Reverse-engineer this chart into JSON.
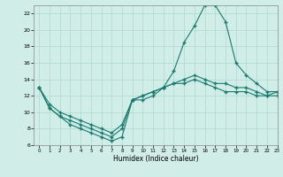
{
  "title": "",
  "xlabel": "Humidex (Indice chaleur)",
  "x_values": [
    0,
    1,
    2,
    3,
    4,
    5,
    6,
    7,
    8,
    9,
    10,
    11,
    12,
    13,
    14,
    15,
    16,
    17,
    18,
    19,
    20,
    21,
    22,
    23
  ],
  "line1": [
    13,
    10.5,
    9.5,
    8.5,
    8.0,
    7.5,
    7.0,
    6.5,
    7.0,
    11.5,
    11.5,
    12.0,
    13.0,
    15.0,
    18.5,
    20.5,
    23.0,
    23.0,
    21.0,
    16.0,
    14.5,
    13.5,
    12.5,
    12.5
  ],
  "line2": [
    13,
    10.5,
    9.5,
    9.0,
    8.5,
    8.0,
    7.5,
    7.0,
    8.0,
    11.5,
    12.0,
    12.5,
    13.0,
    13.5,
    14.0,
    14.5,
    14.0,
    13.5,
    13.5,
    13.0,
    13.0,
    12.5,
    12.0,
    12.5
  ],
  "line3": [
    13,
    11.0,
    10.0,
    9.5,
    9.0,
    8.5,
    8.0,
    7.5,
    8.5,
    11.5,
    12.0,
    12.5,
    13.0,
    13.5,
    13.5,
    14.0,
    13.5,
    13.0,
    12.5,
    12.5,
    12.5,
    12.0,
    12.0,
    12.0
  ],
  "ylim": [
    6,
    23
  ],
  "xlim": [
    -0.5,
    23
  ],
  "yticks": [
    6,
    8,
    10,
    12,
    14,
    16,
    18,
    20,
    22
  ],
  "xticks": [
    0,
    1,
    2,
    3,
    4,
    5,
    6,
    7,
    8,
    9,
    10,
    11,
    12,
    13,
    14,
    15,
    16,
    17,
    18,
    19,
    20,
    21,
    22,
    23
  ],
  "line_color": "#1a7a6e",
  "bg_color": "#d0ede8",
  "grid_color": "#b0d8d2",
  "marker": "+",
  "markersize": 3,
  "linewidth": 0.8
}
